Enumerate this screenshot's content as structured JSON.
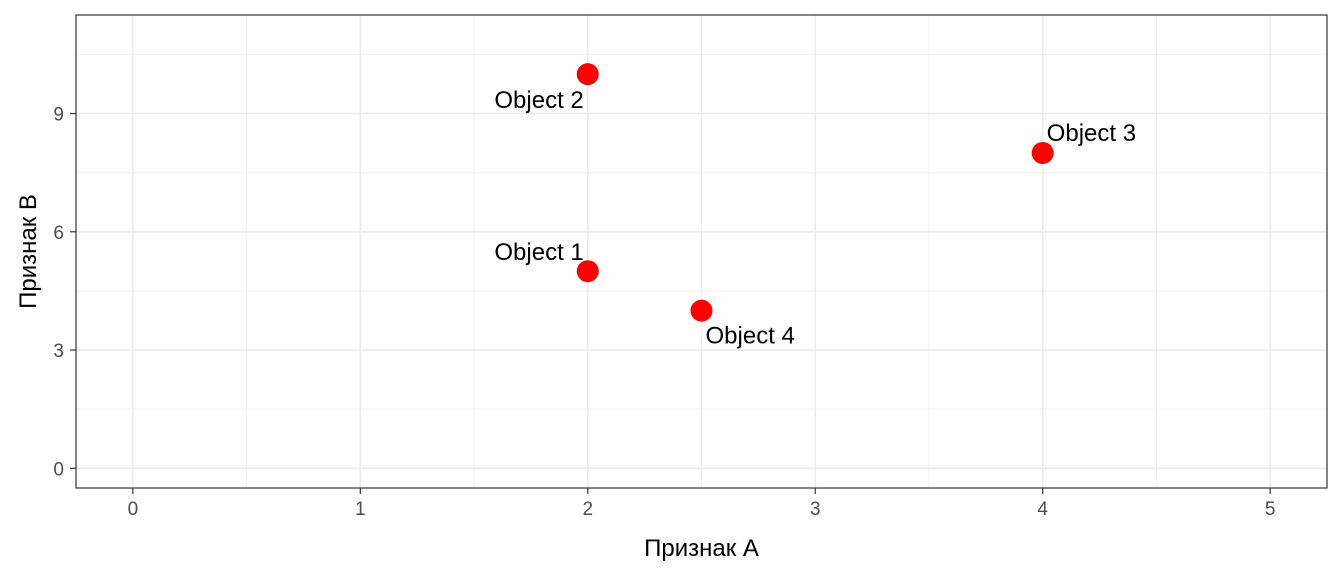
{
  "chart_data": {
    "type": "scatter",
    "xlabel": "Признак A",
    "ylabel": "Признак B",
    "xlim": [
      -0.25,
      5.25
    ],
    "ylim": [
      -0.5,
      11.5
    ],
    "x_ticks": [
      0,
      1,
      2,
      3,
      4,
      5
    ],
    "y_ticks": [
      0,
      3,
      6,
      9
    ],
    "grid": true,
    "points": [
      {
        "label": "Object 1",
        "x": 2.0,
        "y": 5.0,
        "label_position": "upper-left"
      },
      {
        "label": "Object 2",
        "x": 2.0,
        "y": 10.0,
        "label_position": "lower-left"
      },
      {
        "label": "Object 3",
        "x": 4.0,
        "y": 8.0,
        "label_position": "upper-right"
      },
      {
        "label": "Object 4",
        "x": 2.5,
        "y": 4.0,
        "label_position": "lower-right"
      }
    ],
    "point_color": "#ff0000",
    "panel_background": "#ffffff",
    "grid_major_color": "#ebebeb",
    "grid_minor_color": "#f2f2f2",
    "border_color": "#333333"
  }
}
